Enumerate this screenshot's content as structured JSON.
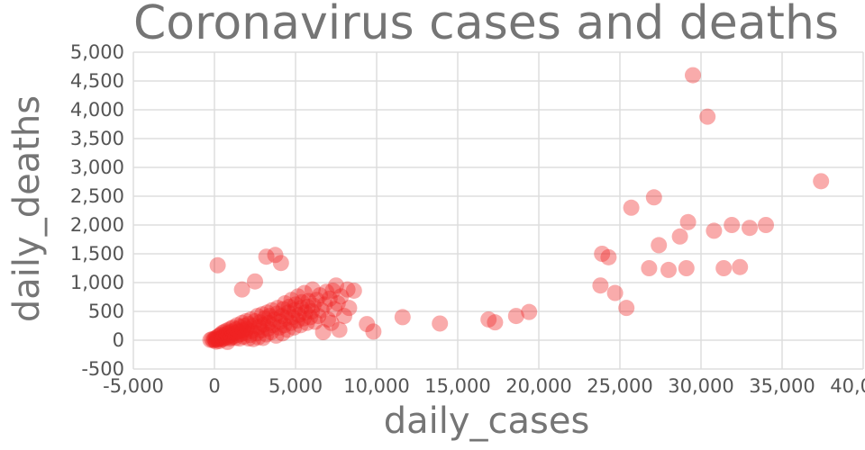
{
  "chart": {
    "title": "Coronavirus cases and deaths",
    "x_label": "daily_cases",
    "y_label": "daily_deaths"
  },
  "chart_data": {
    "type": "scatter",
    "title": "Coronavirus cases and deaths",
    "xlabel": "daily_cases",
    "ylabel": "daily_deaths",
    "xlim": [
      -5000,
      40000
    ],
    "ylim": [
      -500,
      5000
    ],
    "grid": true,
    "legend": "none",
    "marker_color": "#ee2222",
    "marker_opacity": 0.38,
    "marker_radius": 9,
    "gridline_color": "#dddddd",
    "x_ticks": {
      "values": [
        -5000,
        0,
        5000,
        10000,
        15000,
        20000,
        25000,
        30000,
        35000,
        40000
      ],
      "labels": [
        "-5,000",
        "0",
        "5,000",
        "10,000",
        "15,000",
        "20,000",
        "25,000",
        "30,000",
        "35,000",
        "40,000"
      ]
    },
    "y_ticks": {
      "values": [
        -500,
        0,
        500,
        1000,
        1500,
        2000,
        2500,
        3000,
        3500,
        4000,
        4500,
        5000
      ],
      "labels": [
        "-500",
        "0",
        "500",
        "1,000",
        "1,500",
        "2,000",
        "2,500",
        "3,000",
        "3,500",
        "4,000",
        "4,500",
        "5,000"
      ]
    },
    "points": [
      [
        -250,
        5
      ],
      [
        -150,
        15
      ],
      [
        -50,
        0
      ],
      [
        0,
        25
      ],
      [
        50,
        5
      ],
      [
        100,
        -25
      ],
      [
        100,
        40
      ],
      [
        150,
        10
      ],
      [
        200,
        60
      ],
      [
        250,
        20
      ],
      [
        300,
        -15
      ],
      [
        300,
        80
      ],
      [
        350,
        35
      ],
      [
        400,
        100
      ],
      [
        450,
        15
      ],
      [
        500,
        55
      ],
      [
        500,
        130
      ],
      [
        550,
        25
      ],
      [
        600,
        80
      ],
      [
        650,
        150
      ],
      [
        700,
        40
      ],
      [
        750,
        110
      ],
      [
        800,
        -30
      ],
      [
        800,
        170
      ],
      [
        850,
        60
      ],
      [
        900,
        130
      ],
      [
        950,
        30
      ],
      [
        1000,
        90
      ],
      [
        1000,
        200
      ],
      [
        1050,
        50
      ],
      [
        1100,
        150
      ],
      [
        1150,
        220
      ],
      [
        1200,
        70
      ],
      [
        1250,
        120
      ],
      [
        1300,
        40
      ],
      [
        1350,
        190
      ],
      [
        1400,
        260
      ],
      [
        1450,
        90
      ],
      [
        1500,
        150
      ],
      [
        1550,
        30
      ],
      [
        1600,
        230
      ],
      [
        1650,
        110
      ],
      [
        1700,
        300
      ],
      [
        1700,
        880
      ],
      [
        1750,
        170
      ],
      [
        1800,
        60
      ],
      [
        1850,
        250
      ],
      [
        1900,
        130
      ],
      [
        1950,
        330
      ],
      [
        2000,
        200
      ],
      [
        2100,
        30
      ],
      [
        2100,
        280
      ],
      [
        2200,
        90
      ],
      [
        2250,
        360
      ],
      [
        2300,
        160
      ],
      [
        2400,
        20
      ],
      [
        2400,
        250
      ],
      [
        2500,
        330
      ],
      [
        2500,
        1020
      ],
      [
        2600,
        120
      ],
      [
        2650,
        420
      ],
      [
        2700,
        50
      ],
      [
        2750,
        230
      ],
      [
        2800,
        310
      ],
      [
        2900,
        170
      ],
      [
        2950,
        450
      ],
      [
        3000,
        40
      ],
      [
        3050,
        270
      ],
      [
        3100,
        380
      ],
      [
        3200,
        100
      ],
      [
        3200,
        1450
      ],
      [
        3250,
        480
      ],
      [
        3300,
        200
      ],
      [
        3350,
        300
      ],
      [
        3400,
        420
      ],
      [
        3500,
        140
      ],
      [
        3550,
        520
      ],
      [
        3600,
        260
      ],
      [
        3700,
        360
      ],
      [
        3750,
        1480
      ],
      [
        3800,
        80
      ],
      [
        3850,
        460
      ],
      [
        3900,
        560
      ],
      [
        4000,
        220
      ],
      [
        4050,
        320
      ],
      [
        4100,
        1340
      ],
      [
        4150,
        420
      ],
      [
        4200,
        120
      ],
      [
        4250,
        540
      ],
      [
        4300,
        260
      ],
      [
        4350,
        640
      ],
      [
        4400,
        380
      ],
      [
        4500,
        180
      ],
      [
        4550,
        480
      ],
      [
        4600,
        580
      ],
      [
        4700,
        300
      ],
      [
        4750,
        700
      ],
      [
        4800,
        400
      ],
      [
        4900,
        220
      ],
      [
        4950,
        520
      ],
      [
        5000,
        620
      ],
      [
        5100,
        340
      ],
      [
        5150,
        760
      ],
      [
        5200,
        440
      ],
      [
        5300,
        260
      ],
      [
        5350,
        560
      ],
      [
        5400,
        660
      ],
      [
        5500,
        380
      ],
      [
        5550,
        820
      ],
      [
        5600,
        480
      ],
      [
        5700,
        300
      ],
      [
        5750,
        580
      ],
      [
        5800,
        680
      ],
      [
        5900,
        400
      ],
      [
        6000,
        500
      ],
      [
        6050,
        880
      ],
      [
        6100,
        600
      ],
      [
        6200,
        320
      ],
      [
        6300,
        700
      ],
      [
        6400,
        420
      ],
      [
        6500,
        780
      ],
      [
        6600,
        520
      ],
      [
        6700,
        140
      ],
      [
        6800,
        620
      ],
      [
        6900,
        840
      ],
      [
        7000,
        360
      ],
      [
        7100,
        720
      ],
      [
        7200,
        300
      ],
      [
        7300,
        860
      ],
      [
        7400,
        540
      ],
      [
        7500,
        950
      ],
      [
        7600,
        640
      ],
      [
        7700,
        180
      ],
      [
        7800,
        760
      ],
      [
        8000,
        420
      ],
      [
        8200,
        880
      ],
      [
        8300,
        560
      ],
      [
        8600,
        860
      ],
      [
        200,
        1300
      ],
      [
        9400,
        280
      ],
      [
        9800,
        150
      ],
      [
        11600,
        400
      ],
      [
        13900,
        290
      ],
      [
        16900,
        360
      ],
      [
        17300,
        310
      ],
      [
        18600,
        420
      ],
      [
        19400,
        490
      ],
      [
        23800,
        950
      ],
      [
        23900,
        1500
      ],
      [
        24300,
        1440
      ],
      [
        24700,
        820
      ],
      [
        25400,
        560
      ],
      [
        25700,
        2300
      ],
      [
        26800,
        1250
      ],
      [
        27100,
        2480
      ],
      [
        27400,
        1650
      ],
      [
        28000,
        1220
      ],
      [
        28700,
        1800
      ],
      [
        29100,
        1250
      ],
      [
        29200,
        2050
      ],
      [
        29500,
        4600
      ],
      [
        30400,
        3880
      ],
      [
        30800,
        1900
      ],
      [
        31400,
        1250
      ],
      [
        31900,
        2000
      ],
      [
        32400,
        1270
      ],
      [
        33000,
        1950
      ],
      [
        34000,
        2000
      ],
      [
        37400,
        2760
      ]
    ]
  }
}
